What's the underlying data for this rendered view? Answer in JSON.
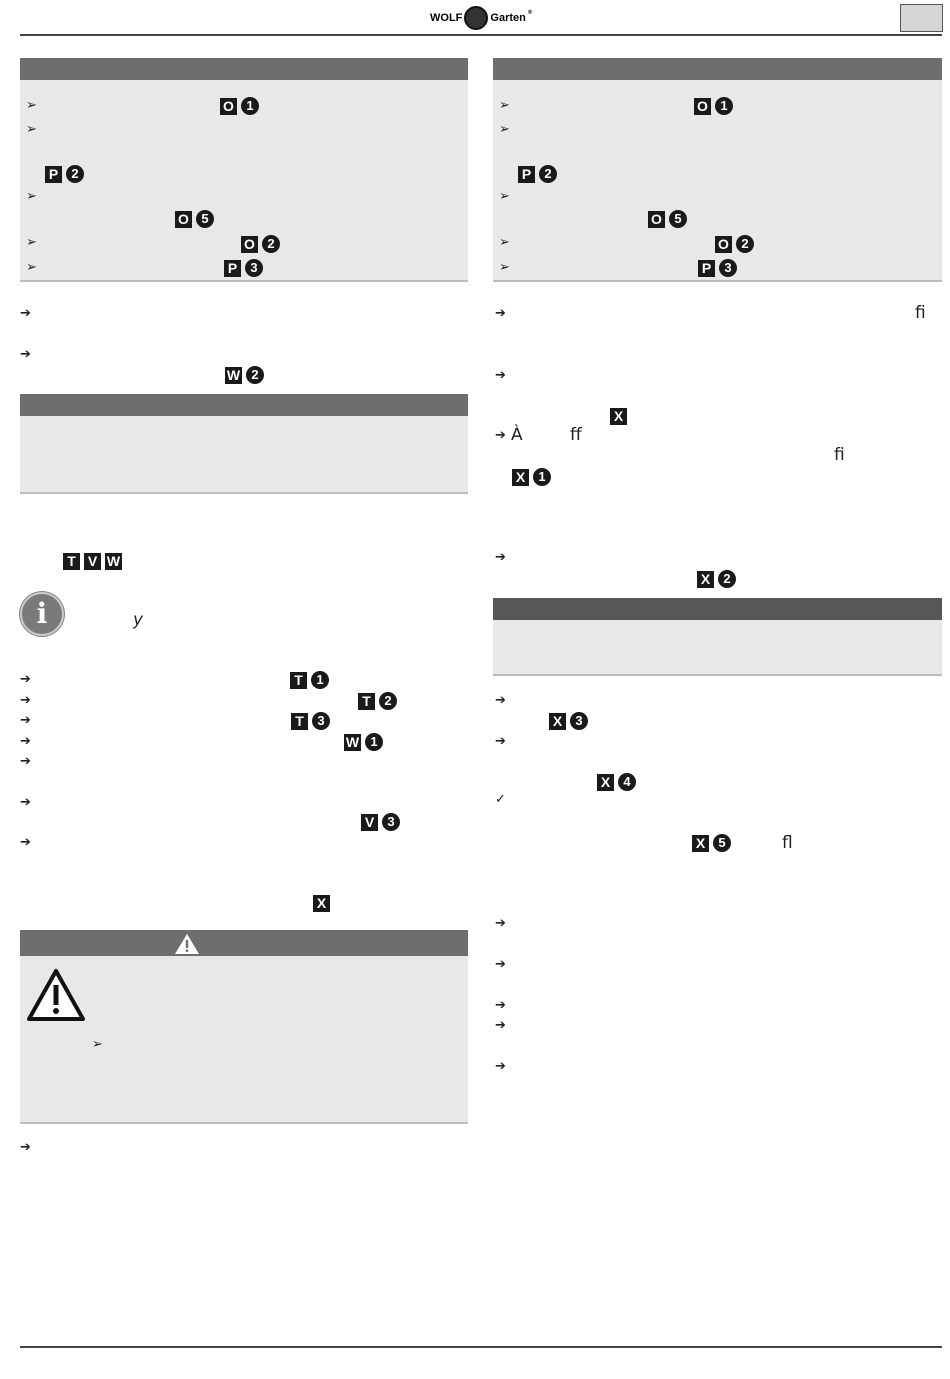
{
  "header": {
    "logo_left": "WOLF",
    "logo_right": "Garten",
    "logo_mark": "®"
  },
  "icons": {
    "arrowhead": "➢",
    "arrow": "➔",
    "check": "✓",
    "info": "i",
    "warning": "!"
  },
  "refs": {
    "O1": {
      "letter": "O",
      "num": "1"
    },
    "P2": {
      "letter": "P",
      "num": "2"
    },
    "O5": {
      "letter": "O",
      "num": "5"
    },
    "O2": {
      "letter": "O",
      "num": "2"
    },
    "P3": {
      "letter": "P",
      "num": "3"
    },
    "W2": {
      "letter": "W",
      "num": "2"
    },
    "T": {
      "letter": "T"
    },
    "V": {
      "letter": "V"
    },
    "W": {
      "letter": "W"
    },
    "T1": {
      "letter": "T",
      "num": "1"
    },
    "T2": {
      "letter": "T",
      "num": "2"
    },
    "T3": {
      "letter": "T",
      "num": "3"
    },
    "W1": {
      "letter": "W",
      "num": "1"
    },
    "V3": {
      "letter": "V",
      "num": "3"
    },
    "X": {
      "letter": "X"
    },
    "X1": {
      "letter": "X",
      "num": "1"
    },
    "X2": {
      "letter": "X",
      "num": "2"
    },
    "X3": {
      "letter": "X",
      "num": "3"
    },
    "X4": {
      "letter": "X",
      "num": "4"
    },
    "X5": {
      "letter": "X",
      "num": "5"
    }
  },
  "glyphs": {
    "y": "y",
    "a_grave": "À",
    "ff": "ff",
    "fi": "fi",
    "fl": "fl"
  },
  "colors": {
    "bar": "#6e6e6e",
    "box": "#e8e8e8",
    "badge": "#1a1a1a"
  }
}
